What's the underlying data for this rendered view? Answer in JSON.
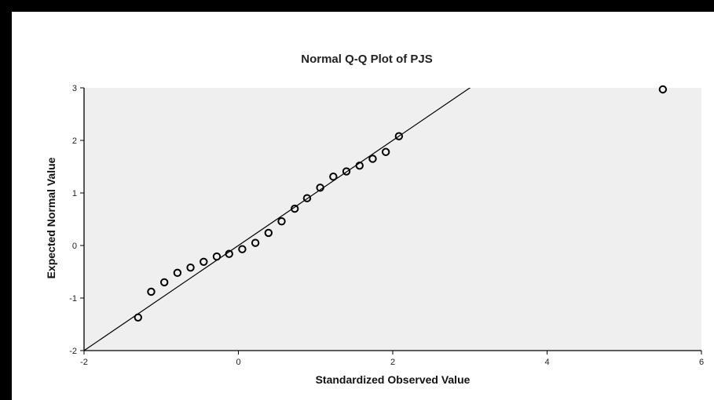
{
  "chart_data": {
    "type": "scatter",
    "title": "Normal Q-Q Plot of PJS",
    "xlabel": "Standardized Observed Value",
    "ylabel": "Expected Normal Value",
    "xlim": [
      -2,
      6
    ],
    "ylim": [
      -2,
      3
    ],
    "xticks": [
      "-2",
      "0",
      "2",
      "4",
      "6"
    ],
    "yticks": [
      "-2",
      "-1",
      "0",
      "1",
      "2",
      "3"
    ],
    "xtick_values": [
      -2,
      0,
      2,
      4,
      6
    ],
    "ytick_values": [
      -2,
      -1,
      0,
      1,
      2,
      3
    ],
    "grid": false,
    "plot_background": "#efefef",
    "marker_color": "#000000",
    "reference_line": {
      "slope": 1,
      "intercept": 0
    },
    "points": [
      {
        "x": -1.3,
        "y": -1.37
      },
      {
        "x": -1.13,
        "y": -0.88
      },
      {
        "x": -0.96,
        "y": -0.7
      },
      {
        "x": -0.79,
        "y": -0.52
      },
      {
        "x": -0.62,
        "y": -0.42
      },
      {
        "x": -0.45,
        "y": -0.31
      },
      {
        "x": -0.28,
        "y": -0.21
      },
      {
        "x": -0.12,
        "y": -0.16
      },
      {
        "x": 0.05,
        "y": -0.07
      },
      {
        "x": 0.22,
        "y": 0.05
      },
      {
        "x": 0.39,
        "y": 0.24
      },
      {
        "x": 0.56,
        "y": 0.46
      },
      {
        "x": 0.73,
        "y": 0.7
      },
      {
        "x": 0.89,
        "y": 0.9
      },
      {
        "x": 1.06,
        "y": 1.1
      },
      {
        "x": 1.23,
        "y": 1.31
      },
      {
        "x": 1.4,
        "y": 1.41
      },
      {
        "x": 1.57,
        "y": 1.52
      },
      {
        "x": 1.74,
        "y": 1.65
      },
      {
        "x": 1.91,
        "y": 1.78
      },
      {
        "x": 2.08,
        "y": 2.08
      },
      {
        "x": 5.5,
        "y": 2.97
      }
    ]
  }
}
